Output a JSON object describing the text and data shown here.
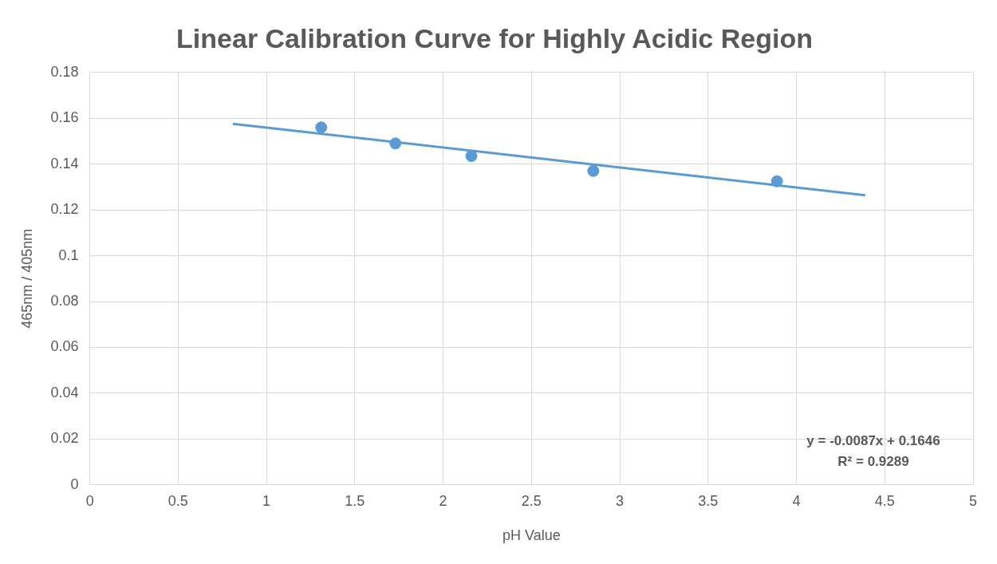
{
  "chart_data": {
    "type": "scatter",
    "title": "Linear Calibration Curve for Highly Acidic Region",
    "xlabel": "pH Value",
    "ylabel": "465nm / 405nm",
    "xlim": [
      0,
      5
    ],
    "xticks": [
      0,
      0.5,
      1,
      1.5,
      2,
      2.5,
      3,
      3.5,
      4,
      4.5,
      5
    ],
    "ylim": [
      0,
      0.18
    ],
    "yticks": [
      0,
      0.02,
      0.04,
      0.06,
      0.08,
      0.1,
      0.12,
      0.14,
      0.16,
      0.18
    ],
    "grid": true,
    "legend": false,
    "marker": "circle",
    "series": [
      {
        "type": "scatter",
        "color": "#5b9bd5",
        "x": [
          1.31,
          1.73,
          2.16,
          2.85,
          3.89
        ],
        "values": [
          0.156,
          0.149,
          0.1435,
          0.137,
          0.1325
        ]
      },
      {
        "type": "line",
        "color": "#5b9bd5",
        "marker": "none",
        "line_style": "solid",
        "x": [
          0.81,
          4.39
        ],
        "values": [
          0.1576,
          0.1264
        ]
      }
    ],
    "annotations": [
      "y = -0.0087x + 0.1646",
      "R² = 0.9289"
    ]
  }
}
